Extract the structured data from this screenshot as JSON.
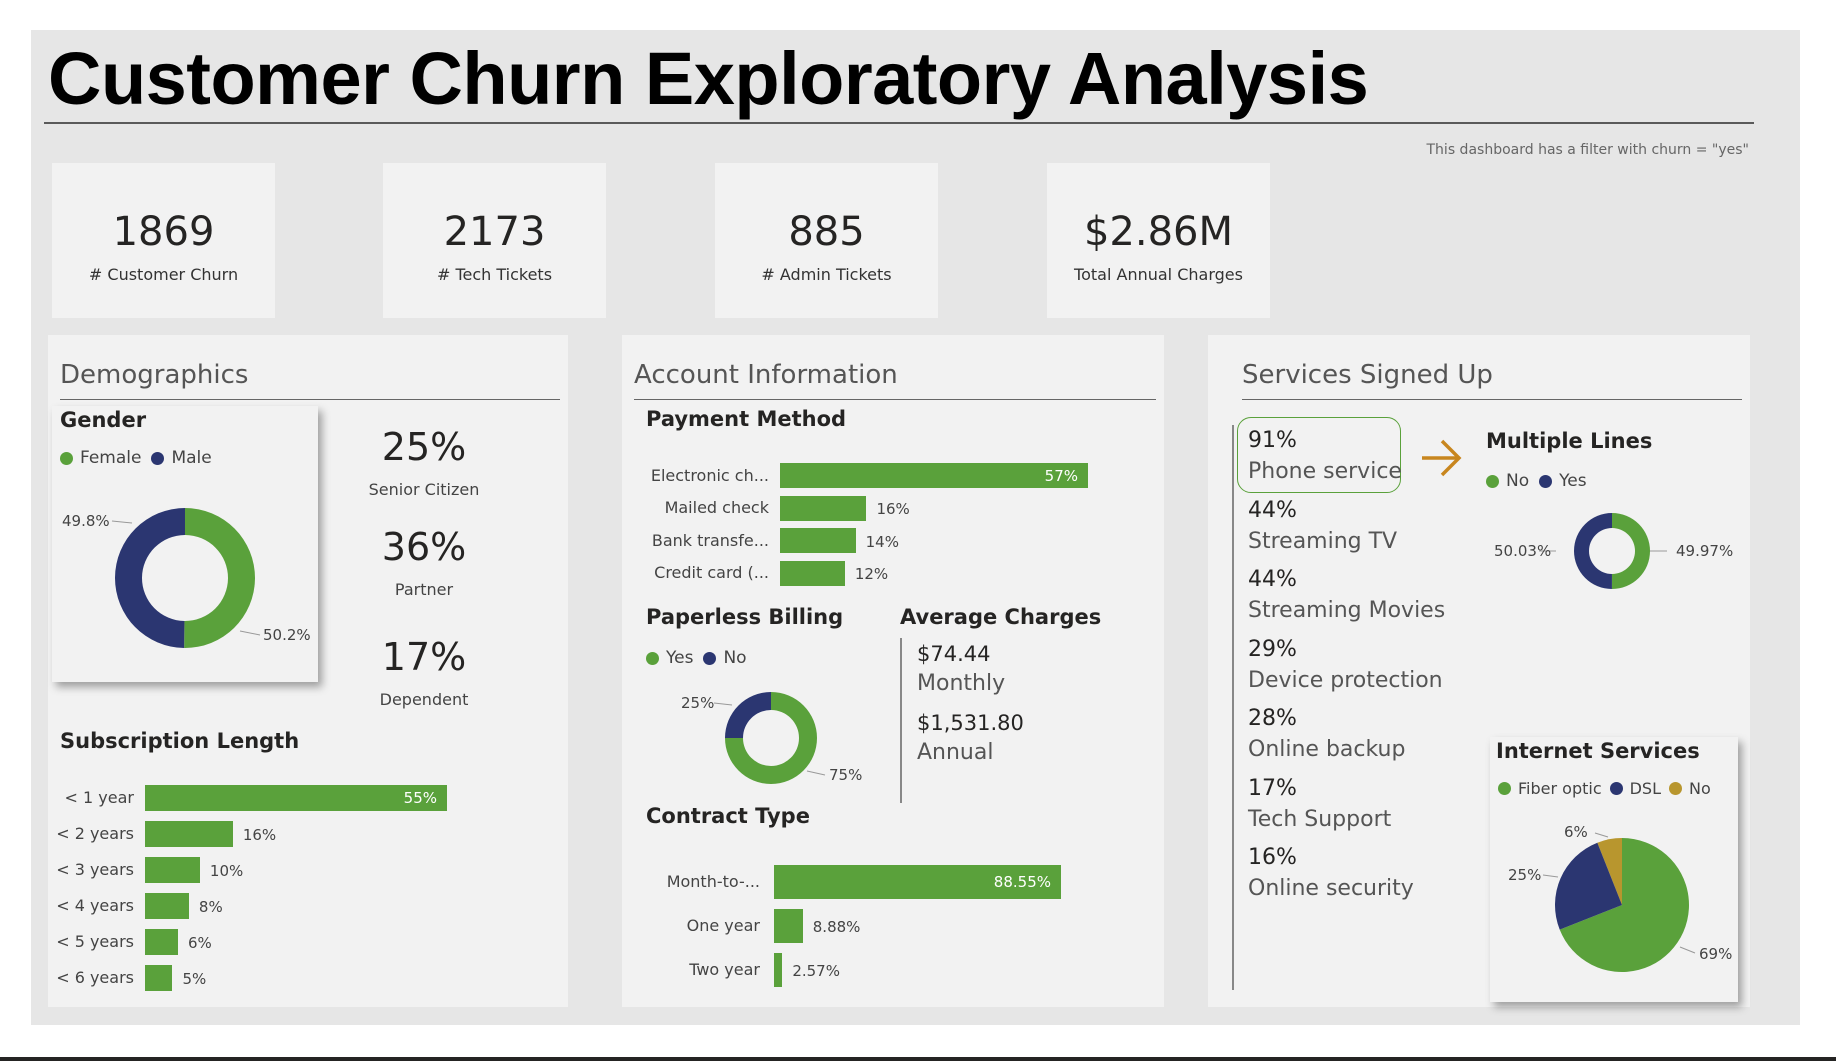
{
  "title": "Customer Churn Exploratory Analysis",
  "filter_note": "This dashboard has a filter with churn = \"yes\"",
  "colors": {
    "green": "#5aa13b",
    "navy": "#2b3671",
    "gold": "#b8962e",
    "arrow": "#c8861e"
  },
  "kpis": [
    {
      "value": "1869",
      "label": "# Customer Churn"
    },
    {
      "value": "2173",
      "label": "# Tech Tickets"
    },
    {
      "value": "885",
      "label": "# Admin Tickets"
    },
    {
      "value": "$2.86M",
      "label": "Total Annual Charges"
    }
  ],
  "demographics": {
    "title": "Demographics",
    "gender_title": "Gender",
    "legend": [
      "Female",
      "Male"
    ],
    "stats": [
      {
        "value": "25%",
        "label": "Senior Citizen"
      },
      {
        "value": "36%",
        "label": "Partner"
      },
      {
        "value": "17%",
        "label": "Dependent"
      }
    ],
    "subscription_title": "Subscription Length"
  },
  "account": {
    "title": "Account Information",
    "payment_title": "Payment Method",
    "paperless_title": "Paperless Billing",
    "paperless_legend": [
      "Yes",
      "No"
    ],
    "avg_title": "Average Charges",
    "avg_monthly_value": "$74.44",
    "avg_monthly_label": "Monthly",
    "avg_annual_value": "$1,531.80",
    "avg_annual_label": "Annual",
    "contract_title": "Contract Type"
  },
  "services": {
    "title": "Services Signed Up",
    "items": [
      {
        "pct": "91%",
        "name": "Phone service"
      },
      {
        "pct": "44%",
        "name": "Streaming TV"
      },
      {
        "pct": "44%",
        "name": "Streaming Movies"
      },
      {
        "pct": "29%",
        "name": "Device protection"
      },
      {
        "pct": "28%",
        "name": "Online backup"
      },
      {
        "pct": "17%",
        "name": "Tech Support"
      },
      {
        "pct": "16%",
        "name": "Online security"
      }
    ],
    "multiple_lines_title": "Multiple Lines",
    "multiple_lines_legend": [
      "No",
      "Yes"
    ],
    "internet_title": "Internet Services",
    "internet_legend": [
      "Fiber optic",
      "DSL",
      "No"
    ]
  },
  "chart_data": [
    {
      "type": "pie",
      "title": "Gender",
      "categories": [
        "Female",
        "Male"
      ],
      "values": [
        50.2,
        49.8
      ],
      "data_labels": [
        "50.2%",
        "49.8%"
      ],
      "donut": true
    },
    {
      "type": "bar",
      "title": "Subscription Length",
      "orientation": "horizontal",
      "categories": [
        "< 1 year",
        "< 2 years",
        "< 3 years",
        "< 4 years",
        "< 5 years",
        "< 6 years"
      ],
      "values": [
        55,
        16,
        10,
        8,
        6,
        5
      ],
      "data_labels": [
        "55%",
        "16%",
        "10%",
        "8%",
        "6%",
        "5%"
      ]
    },
    {
      "type": "bar",
      "title": "Payment Method",
      "orientation": "horizontal",
      "categories": [
        "Electronic ch...",
        "Mailed check",
        "Bank transfe...",
        "Credit card (..."
      ],
      "values": [
        57,
        16,
        14,
        12
      ],
      "data_labels": [
        "57%",
        "16%",
        "14%",
        "12%"
      ]
    },
    {
      "type": "pie",
      "title": "Paperless Billing",
      "categories": [
        "Yes",
        "No"
      ],
      "values": [
        75,
        25
      ],
      "data_labels": [
        "75%",
        "25%"
      ],
      "donut": true
    },
    {
      "type": "bar",
      "title": "Contract Type",
      "orientation": "horizontal",
      "categories": [
        "Month-to-...",
        "One year",
        "Two year"
      ],
      "values": [
        88.55,
        8.88,
        2.57
      ],
      "data_labels": [
        "88.55%",
        "8.88%",
        "2.57%"
      ]
    },
    {
      "type": "pie",
      "title": "Multiple Lines",
      "categories": [
        "No",
        "Yes"
      ],
      "values": [
        50.03,
        49.97
      ],
      "data_labels": [
        "50.03%",
        "49.97%"
      ],
      "donut": true
    },
    {
      "type": "pie",
      "title": "Internet Services",
      "categories": [
        "Fiber optic",
        "DSL",
        "No"
      ],
      "values": [
        69,
        25,
        6
      ],
      "data_labels": [
        "69%",
        "25%",
        "6%"
      ],
      "donut": false
    }
  ]
}
